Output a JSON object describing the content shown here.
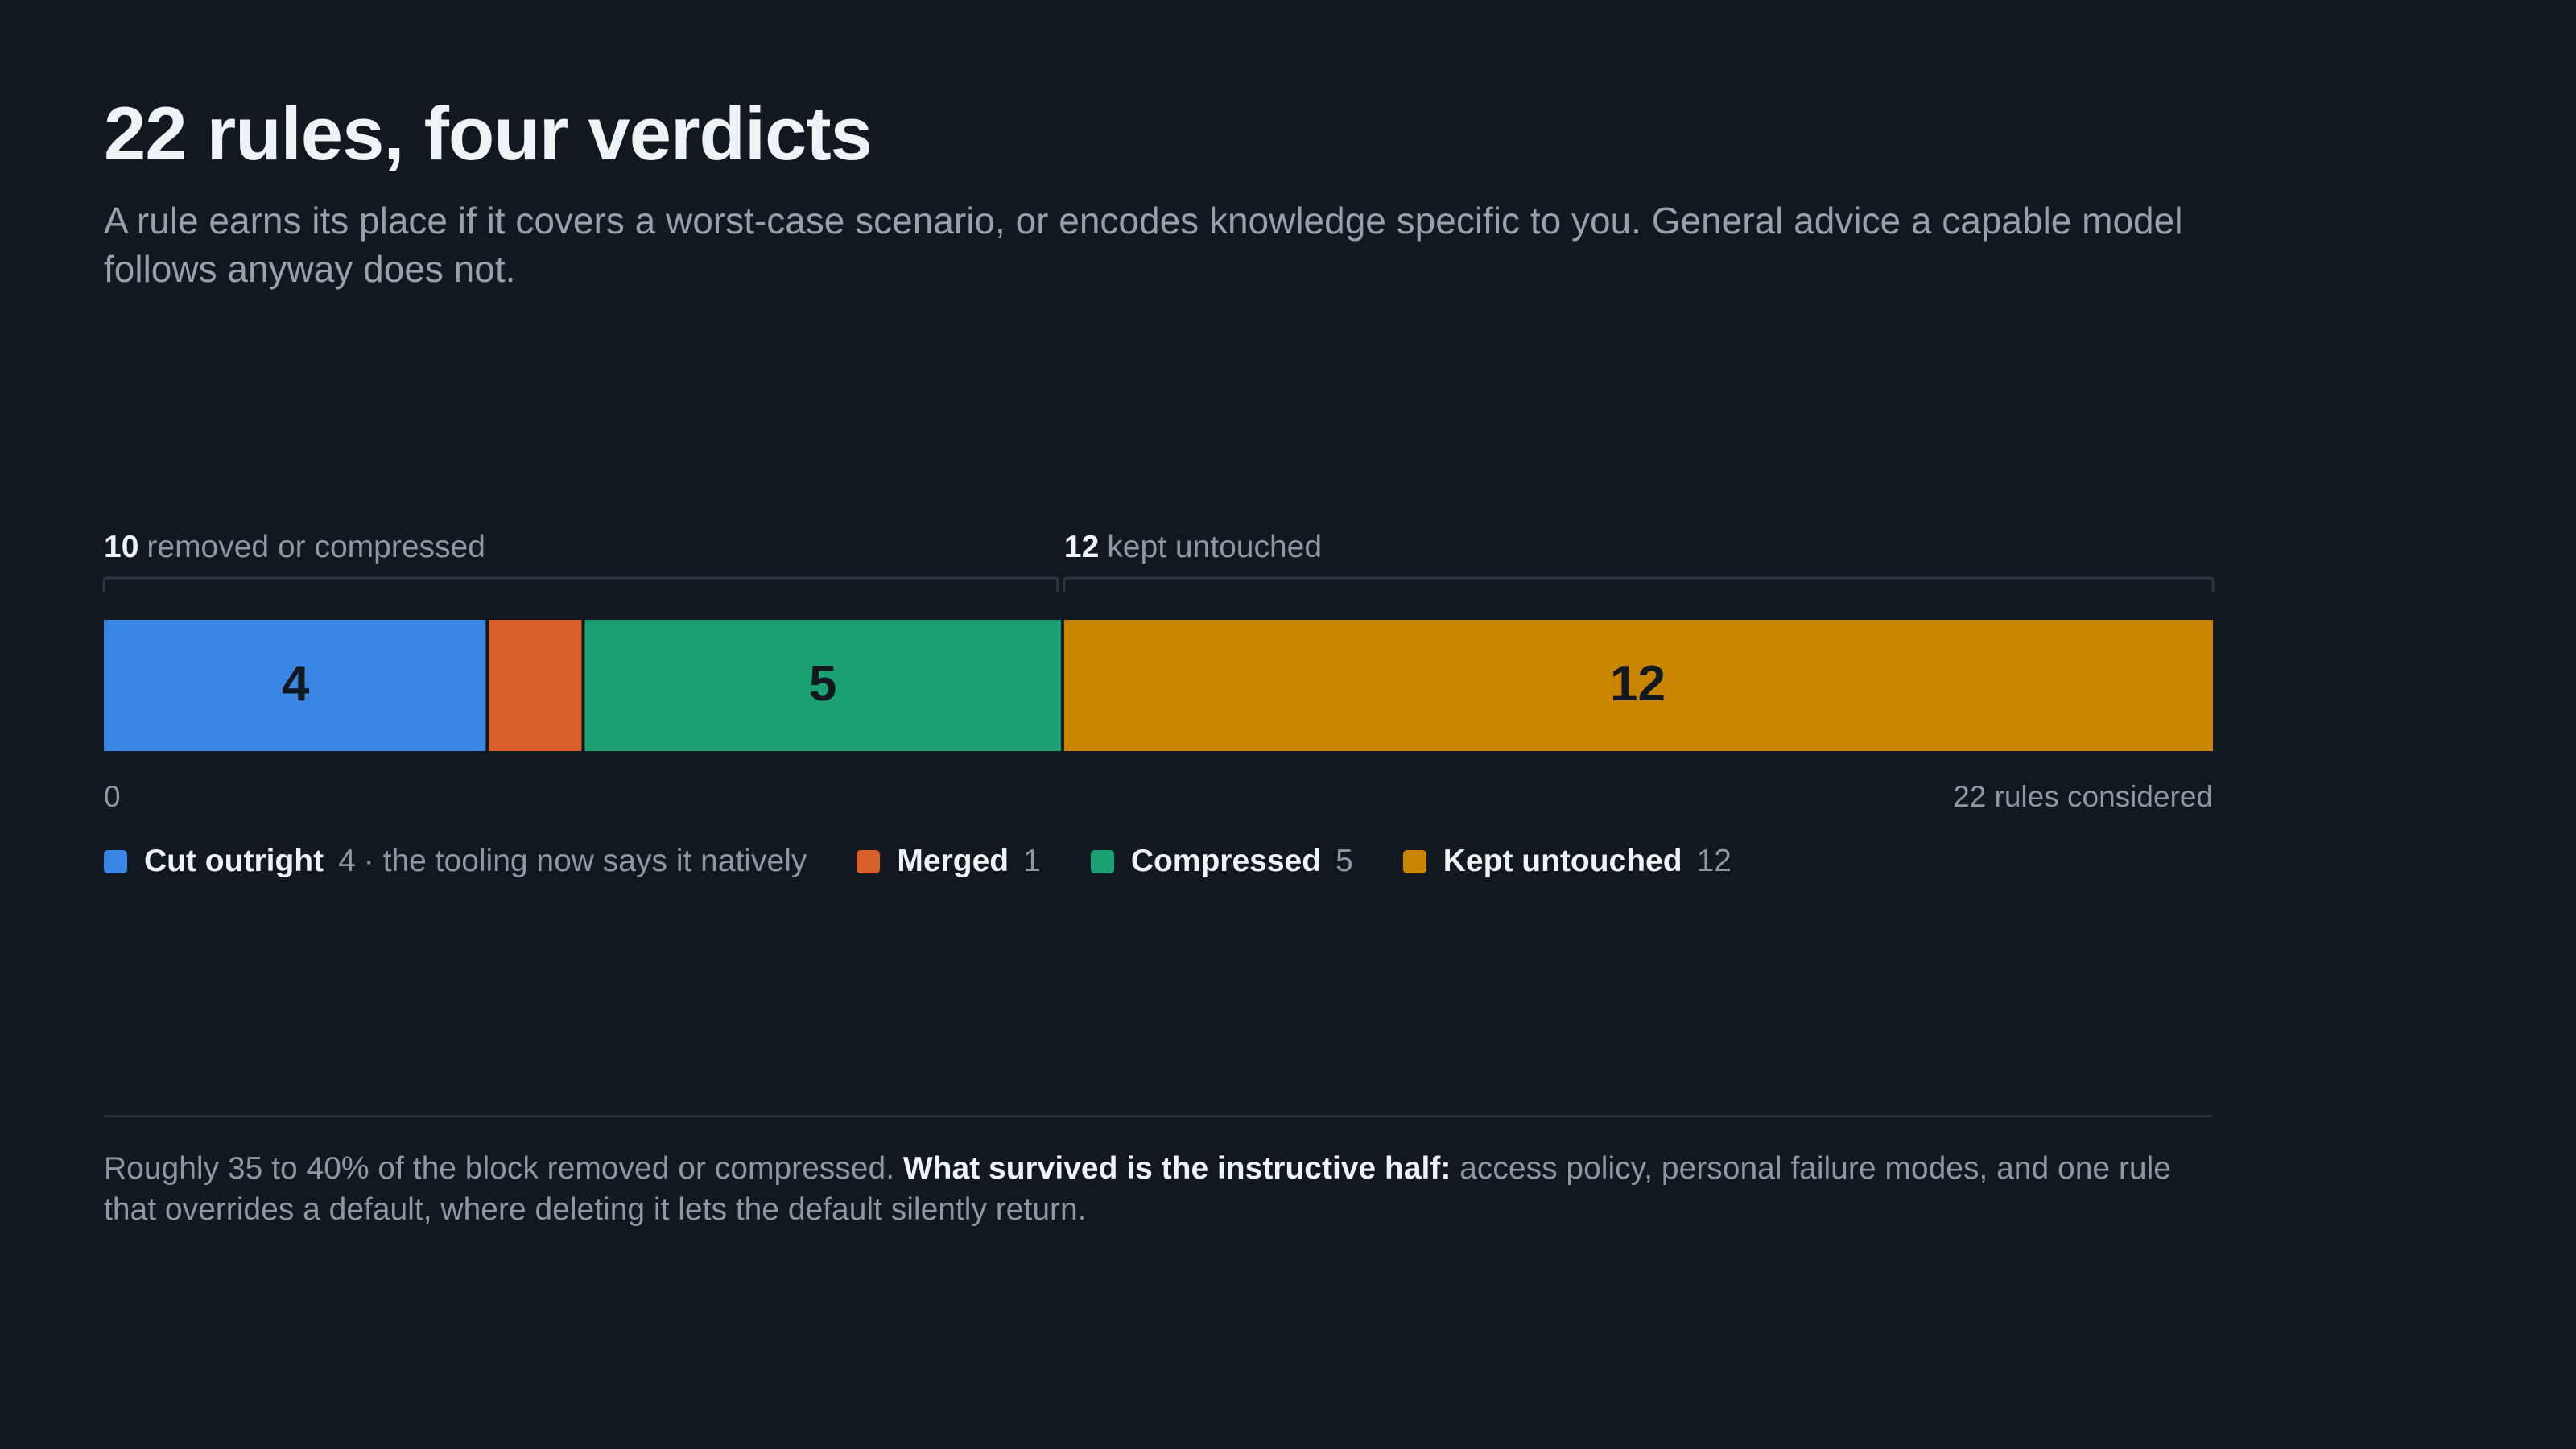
{
  "chart_data": {
    "type": "stacked-bar",
    "title": "22 rules, four verdicts",
    "subtitle": "A rule earns its place if it covers a worst-case scenario, or encodes knowledge specific to you. General advice a capable model follows anyway does not.",
    "groups": [
      {
        "value": 10,
        "label": "removed or compressed"
      },
      {
        "value": 12,
        "label": "kept untouched"
      }
    ],
    "series": [
      {
        "name": "Cut outright",
        "color": "#3a86e4",
        "values": [
          4
        ],
        "note": "· the tooling now says it natively",
        "data_label": true
      },
      {
        "name": "Merged",
        "color": "#d95f2a",
        "values": [
          1
        ],
        "data_label": false
      },
      {
        "name": "Compressed",
        "color": "#1aa073",
        "values": [
          5
        ],
        "data_label": true
      },
      {
        "name": "Kept untouched",
        "color": "#c98500",
        "values": [
          12
        ],
        "data_label": true
      }
    ],
    "xlim": [
      0,
      22
    ],
    "xticks": [
      0,
      {
        "value": 22,
        "label": "22 rules considered"
      }
    ],
    "footnote": [
      {
        "text": "Roughly 35 to 40% of the block removed or compressed. ",
        "bold": false
      },
      {
        "text": "What survived is the instructive half:",
        "bold": true
      },
      {
        "text": " access policy, personal failure modes, and one rule that overrides a default, where deleting it lets the default silently return.",
        "bold": false
      }
    ]
  }
}
